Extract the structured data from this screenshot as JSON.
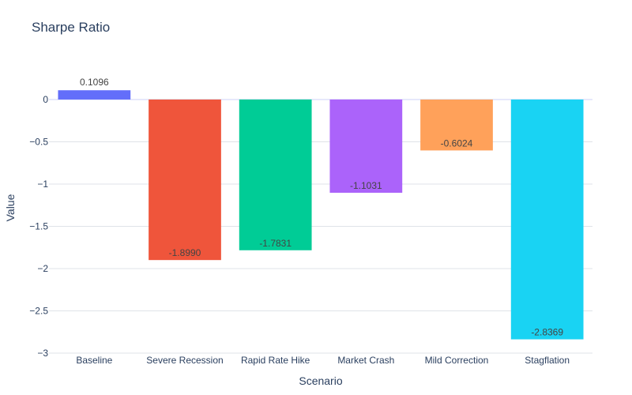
{
  "chart_data": {
    "type": "bar",
    "title": "Sharpe Ratio",
    "xlabel": "Scenario",
    "ylabel": "Value",
    "categories": [
      "Baseline",
      "Severe Recession",
      "Rapid Rate Hike",
      "Market Crash",
      "Mild Correction",
      "Stagflation"
    ],
    "values": [
      0.1096,
      -1.899,
      -1.7831,
      -1.1031,
      -0.6024,
      -2.8369
    ],
    "data_labels": [
      "0.1096",
      "-1.8990",
      "-1.7831",
      "-1.1031",
      "-0.6024",
      "-2.8369"
    ],
    "colors": [
      "#636efa",
      "#ef553b",
      "#00cc96",
      "#ab63fa",
      "#ffa15a",
      "#19d3f3"
    ],
    "ylim": [
      -3,
      0.28
    ],
    "yticks": [
      0,
      -0.5,
      -1,
      -1.5,
      -2,
      -2.5,
      -3
    ],
    "ytick_labels": [
      "0",
      "−0.5",
      "−1",
      "−1.5",
      "−2",
      "−2.5",
      "−3"
    ],
    "grid": true,
    "legend": false
  }
}
